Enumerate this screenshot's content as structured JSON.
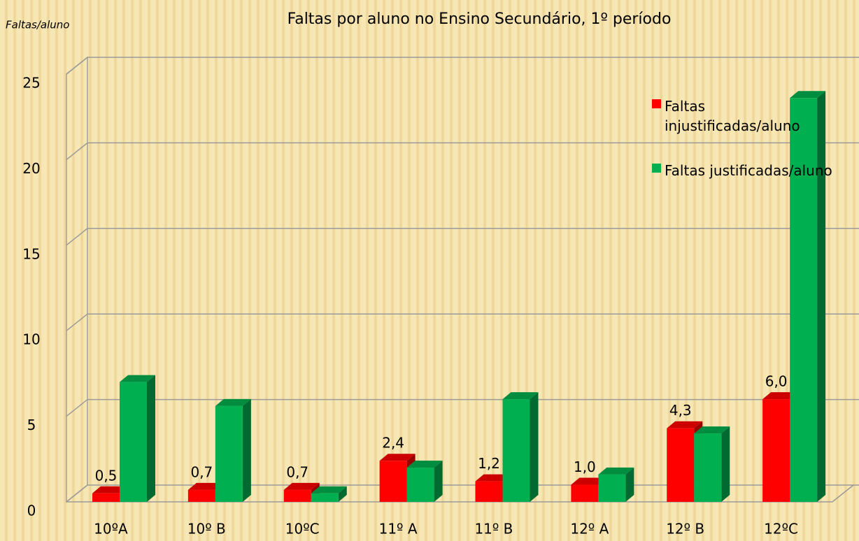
{
  "chart_data": {
    "type": "bar3d",
    "title": "Faltas por aluno no Ensino Secundário, 1º período",
    "y_label": "Faltas/aluno",
    "categories": [
      "10ºA",
      "10º B",
      "10ºC",
      "11º A",
      "11º B",
      "12º A",
      "12º B",
      "12ºC"
    ],
    "series": [
      {
        "name": "Faltas injustificadas/aluno",
        "color": "#ff0000",
        "values": [
          0.5,
          0.7,
          0.7,
          2.4,
          1.2,
          1.0,
          4.3,
          6.0
        ],
        "value_labels": [
          "0,5",
          "0,7",
          "0,7",
          "2,4",
          "1,2",
          "1,0",
          "4,3",
          "6,0"
        ]
      },
      {
        "name": "Faltas justificadas/aluno",
        "color": "#00b050",
        "values": [
          7.0,
          5.6,
          0.5,
          2.0,
          6.0,
          1.6,
          4.0,
          23.6
        ]
      }
    ],
    "ylim": [
      0,
      25
    ],
    "yticks": [
      0,
      5,
      10,
      15,
      20,
      25
    ],
    "grid": true,
    "legend": "upper right"
  }
}
